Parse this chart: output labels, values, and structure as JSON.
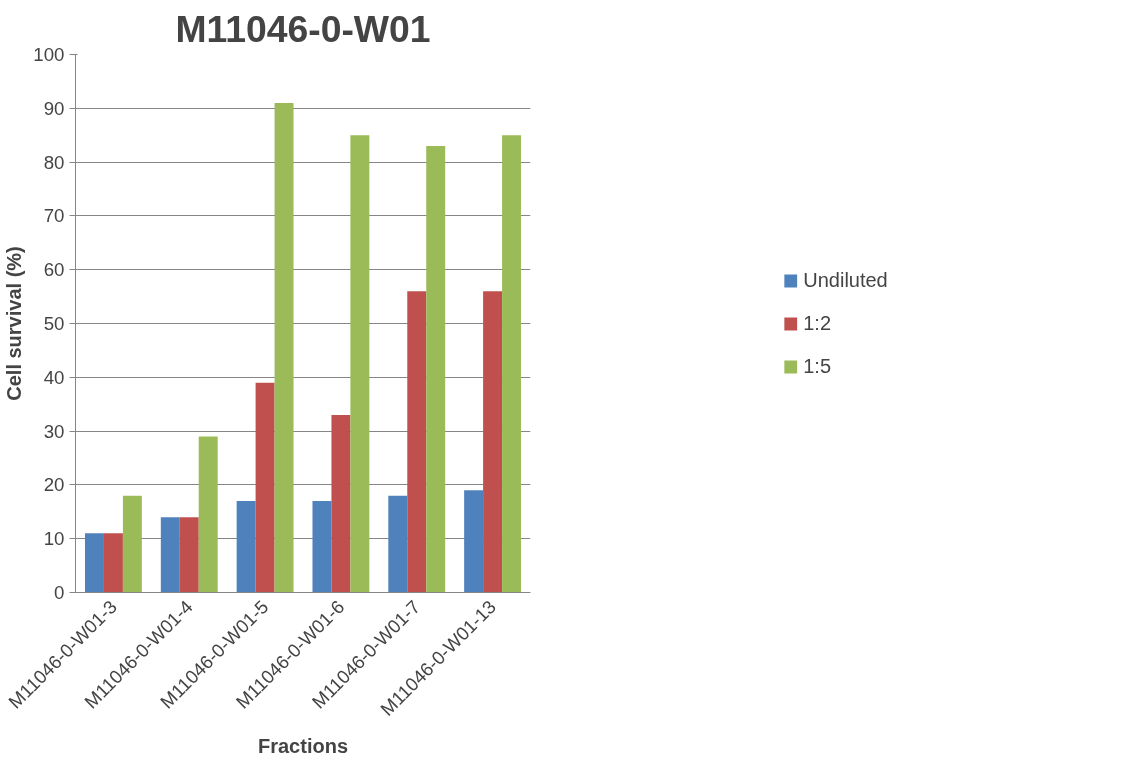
{
  "chart_data": {
    "type": "bar",
    "title": "M11046-0-W01",
    "xlabel": "Fractions",
    "ylabel": "Cell survival (%)",
    "categories": [
      "M11046-0-W01-3",
      "M11046-0-W01-4",
      "M11046-0-W01-5",
      "M11046-0-W01-6",
      "M11046-0-W01-7",
      "M11046-0-W01-13"
    ],
    "series": [
      {
        "name": "Undiluted",
        "color": "#4f81bd",
        "values": [
          11,
          14,
          17,
          17,
          18,
          19
        ]
      },
      {
        "name": "1:2",
        "color": "#c0504d",
        "values": [
          11,
          14,
          39,
          33,
          56,
          56
        ]
      },
      {
        "name": "1:5",
        "color": "#9bbb59",
        "values": [
          18,
          29,
          91,
          85,
          83,
          85
        ]
      }
    ],
    "ylim": [
      0,
      100
    ],
    "yticks": [
      0,
      10,
      20,
      30,
      40,
      50,
      60,
      70,
      80,
      90,
      100
    ],
    "grid": "y",
    "legend": "right"
  }
}
